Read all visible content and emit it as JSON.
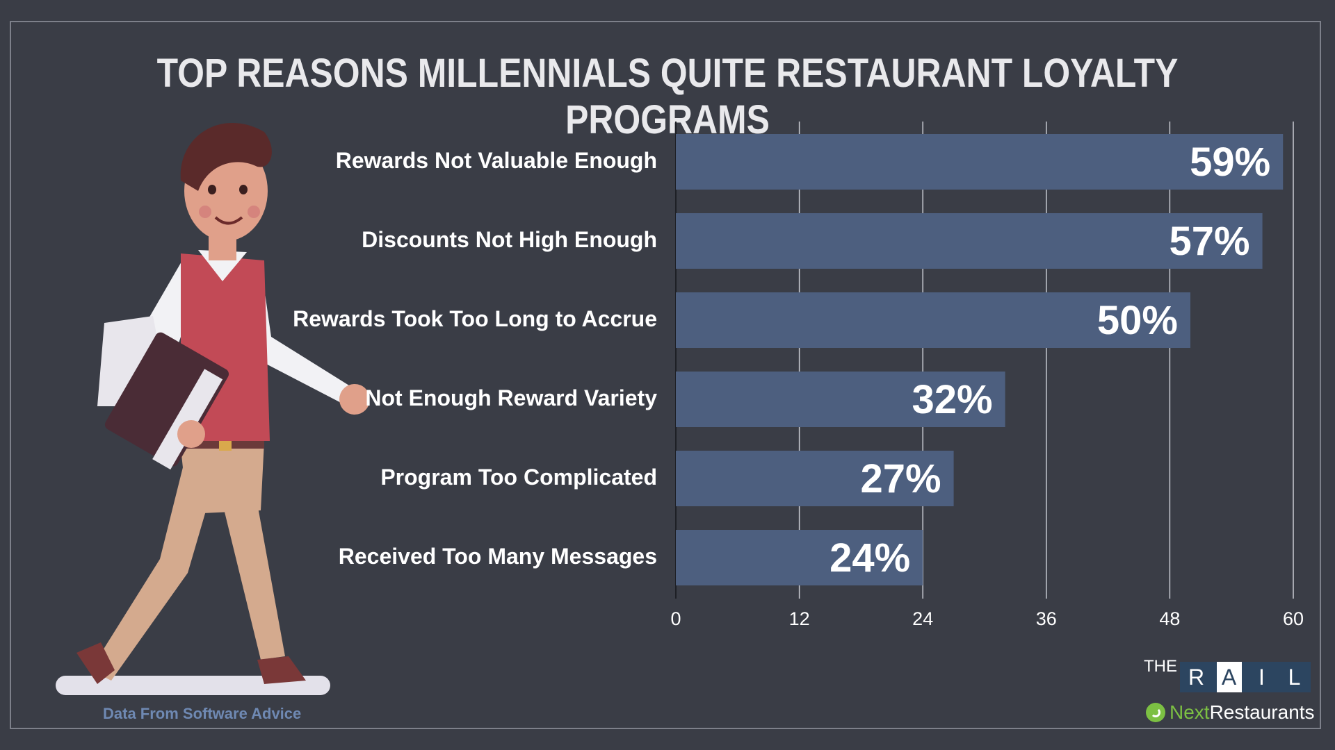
{
  "title": "TOP REASONS MILLENNIALS QUITE RESTAURANT LOYALTY PROGRAMS",
  "source": "Data From Software Advice",
  "logo": {
    "the": "THE",
    "rail_letters": [
      "R",
      "A",
      "I",
      "L"
    ],
    "next_part1": "Next",
    "next_part2": "Restaurants"
  },
  "colors": {
    "background": "#3a3d46",
    "bar": "#4d5f7f",
    "gridline": "#c9ccd3",
    "title": "#e9e9ec",
    "source": "#6f89b3"
  },
  "chart_data": {
    "type": "bar",
    "orientation": "horizontal",
    "title": "TOP REASONS MILLENNIALS QUITE RESTAURANT LOYALTY PROGRAMS",
    "categories": [
      "Rewards Not Valuable Enough",
      "Discounts Not High Enough",
      "Rewards Took Too Long to Accrue",
      "Not Enough Reward Variety",
      "Program Too Complicated",
      "Received Too Many Messages"
    ],
    "values": [
      59,
      57,
      50,
      32,
      27,
      24
    ],
    "data_labels": [
      "59%",
      "57%",
      "50%",
      "32%",
      "27%",
      "24%"
    ],
    "xlim": [
      0,
      60
    ],
    "xticks": [
      0,
      12,
      24,
      36,
      48,
      60
    ],
    "grid": true,
    "legend": "none"
  }
}
